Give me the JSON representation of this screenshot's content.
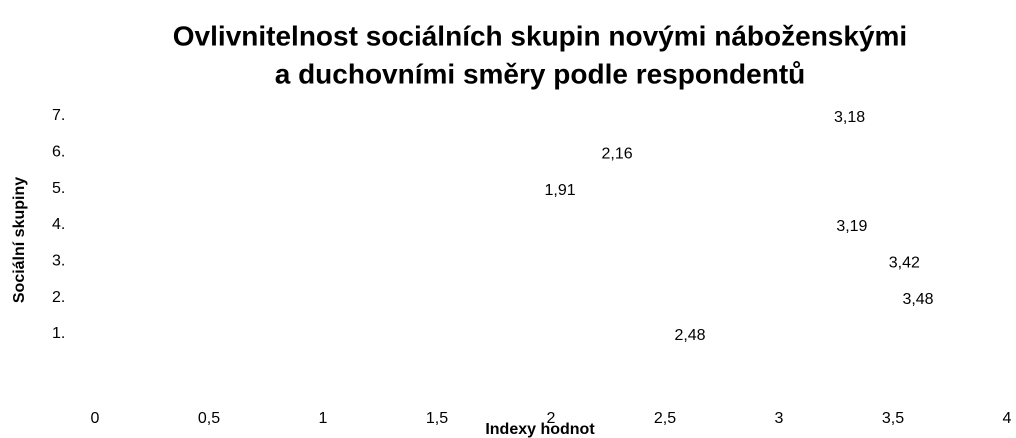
{
  "chart_data": {
    "type": "bar",
    "orientation": "horizontal",
    "title": [
      "Ovlivnitelnost sociálních skupin novými náboženskými",
      "a duchovními směry podle respondentů"
    ],
    "x_label": "Indexy hodnot",
    "y_label": "Sociální skupiny",
    "categories": [
      "1.",
      "2.",
      "3.",
      "4.",
      "5.",
      "6.",
      "7."
    ],
    "values": [
      2.48,
      3.48,
      3.42,
      3.19,
      1.91,
      2.16,
      3.18
    ],
    "value_labels": [
      "2,48",
      "3,48",
      "3,42",
      "3,19",
      "1,91",
      "2,16",
      "3,18"
    ],
    "xlim": [
      0,
      4
    ],
    "xticks": [
      0,
      {
        "value": 0.5,
        "label": "0,5"
      },
      1,
      {
        "value": 1.5,
        "label": "1,5"
      },
      2,
      {
        "value": 2.5,
        "label": "2,5"
      },
      3,
      {
        "value": 3.5,
        "label": "3,5"
      },
      4
    ],
    "grid": false
  }
}
